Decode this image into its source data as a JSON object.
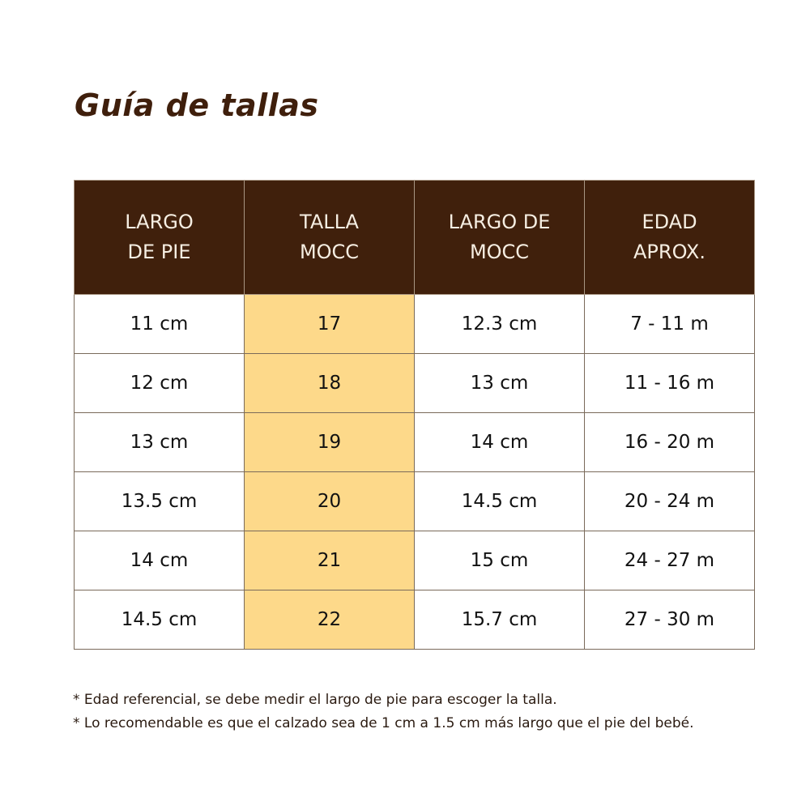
{
  "title": "Guía de tallas",
  "colors": {
    "header": "#40200c",
    "highlight": "#fdd98a"
  },
  "table": {
    "headers": [
      [
        "LARGO",
        "DE PIE"
      ],
      [
        "TALLA",
        "MOCC"
      ],
      [
        "LARGO DE",
        "MOCC"
      ],
      [
        "EDAD",
        "APROX."
      ]
    ],
    "rows": [
      [
        "11 cm",
        "17",
        "12.3 cm",
        "7 - 11 m"
      ],
      [
        "12 cm",
        "18",
        "13 cm",
        "11 - 16 m"
      ],
      [
        "13 cm",
        "19",
        "14 cm",
        "16 - 20 m"
      ],
      [
        "13.5 cm",
        "20",
        "14.5 cm",
        "20 - 24 m"
      ],
      [
        "14 cm",
        "21",
        "15 cm",
        "24 - 27 m"
      ],
      [
        "14.5 cm",
        "22",
        "15.7 cm",
        "27 - 30 m"
      ]
    ]
  },
  "notes": [
    "* Edad referencial, se debe medir el largo de pie para escoger la talla.",
    "* Lo recomendable es que el calzado sea de 1 cm a 1.5 cm más largo que el pie del bebé."
  ]
}
